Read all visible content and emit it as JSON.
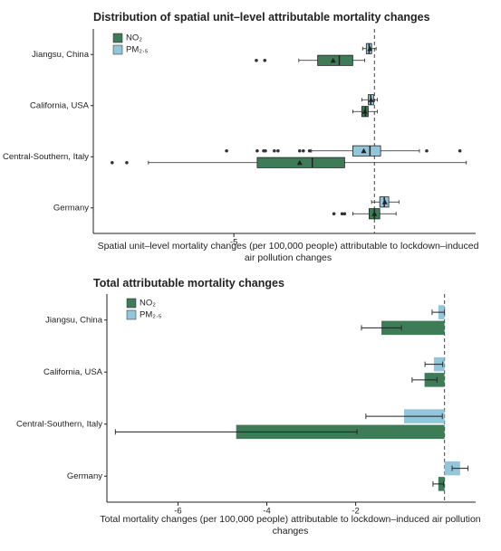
{
  "chart_data": [
    {
      "type": "box",
      "title": "Distribution of spatial unit–level attributable mortality changes",
      "x_label": "Spatial unit–level mortality changes (per 100,000 people) attributable to lockdown–induced air pollution changes",
      "categories": [
        "Jiangsu, China",
        "California, USA",
        "Central-Southern, Italy",
        "Germany"
      ],
      "xlim": [
        -10,
        3.6
      ],
      "xticks": [
        -5
      ],
      "reference_line": 0,
      "series": [
        {
          "name": "NO₂",
          "color": "#3e7b57",
          "stats": [
            {
              "min": -2.69,
              "q1": -2.02,
              "median": -1.25,
              "q3": -0.77,
              "max": -0.35,
              "mean": -1.47,
              "outliers": [
                -4.2,
                -3.9
              ]
            },
            {
              "min": -0.77,
              "q1": -0.45,
              "median": -0.32,
              "q3": -0.22,
              "max": 0.1,
              "mean": -0.34,
              "outliers": []
            },
            {
              "min": -8.04,
              "q1": -4.17,
              "median": -2.21,
              "q3": -1.06,
              "max": 3.27,
              "mean": -2.66,
              "outliers": [
                -9.33,
                -8.81
              ]
            },
            {
              "min": -0.77,
              "q1": -0.19,
              "median": 0,
              "q3": 0.19,
              "max": 0.77,
              "mean": 0,
              "outliers": [
                -1.44,
                -1.15,
                -1.06
              ]
            }
          ]
        },
        {
          "name": "PM₂.₅",
          "color": "#93c6db",
          "stats": [
            {
              "min": -0.42,
              "q1": -0.29,
              "median": -0.19,
              "q3": -0.1,
              "max": 0.06,
              "mean": -0.16,
              "outliers": []
            },
            {
              "min": -0.45,
              "q1": -0.22,
              "median": -0.13,
              "q3": -0.03,
              "max": 0.1,
              "mean": -0.12,
              "outliers": []
            },
            {
              "min": -2.24,
              "q1": -0.77,
              "median": -0.16,
              "q3": 0.22,
              "max": 1.6,
              "mean": -0.38,
              "outliers": [
                -5.26,
                -4.17,
                -3.94,
                -3.88,
                -3.56,
                -3.43,
                -2.66,
                -2.53,
                -2.31,
                1.86,
                3.04
              ]
            },
            {
              "min": -0.1,
              "q1": 0.19,
              "median": 0.35,
              "q3": 0.51,
              "max": 0.87,
              "mean": 0.37,
              "outliers": []
            }
          ]
        }
      ]
    },
    {
      "type": "bar",
      "title": "Total attributable mortality changes",
      "x_label": "Total mortality changes (per 100,000 people) attributable to lockdown–induced air pollution changes",
      "categories": [
        "Jiangsu, China",
        "California, USA",
        "Central-Southern, Italy",
        "Germany"
      ],
      "xlim": [
        -7.6,
        0.7
      ],
      "xticks": [
        -6,
        -4,
        -2
      ],
      "reference_line": 0,
      "series": [
        {
          "name": "NO₂",
          "color": "#3e7b57",
          "values": [
            -1.42,
            -0.45,
            -4.69,
            -0.14
          ],
          "errors": [
            0.45,
            0.28,
            2.72,
            0.12
          ]
        },
        {
          "name": "PM₂.₅",
          "color": "#93c6db",
          "values": [
            -0.14,
            -0.24,
            -0.91,
            0.35
          ],
          "errors": [
            0.14,
            0.2,
            0.86,
            0.18
          ]
        }
      ]
    }
  ]
}
